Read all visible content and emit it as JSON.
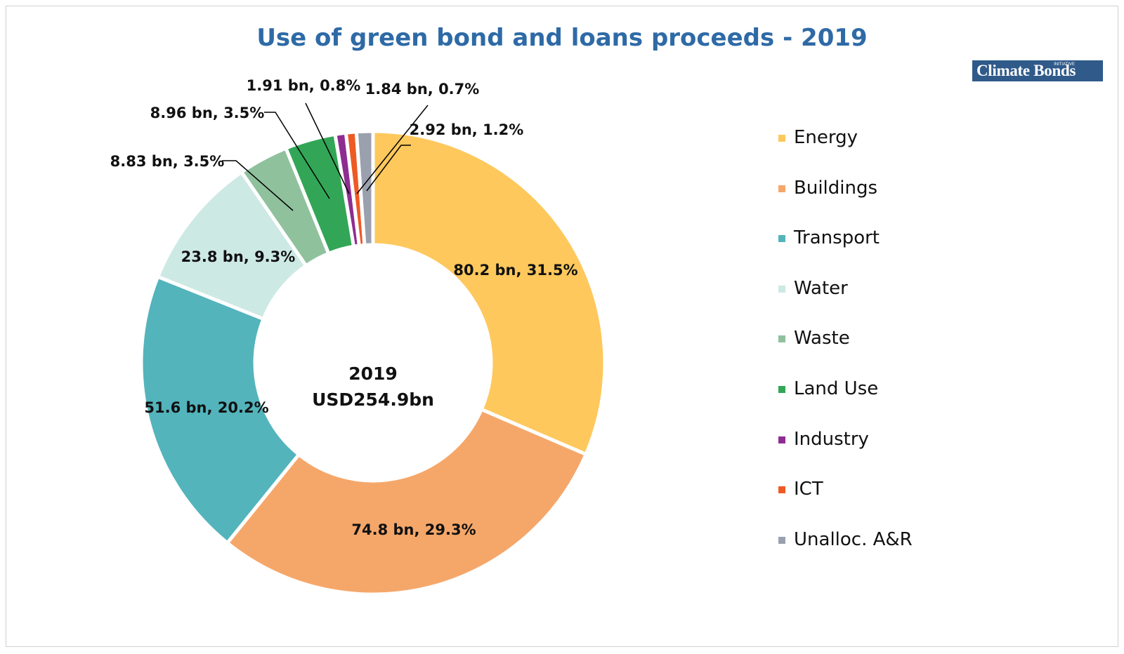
{
  "title": "Use of green bond and loans proceeds - 2019",
  "logo": {
    "text": "Climate Bonds",
    "tag": "INITIATIVE",
    "bg_color": "#2f5a8a"
  },
  "center": {
    "line1": "2019",
    "line2": "USD254.9bn"
  },
  "chart_data": {
    "type": "pie",
    "title": "Use of green bond and loans proceeds - 2019",
    "total_label": "USD254.9bn",
    "legend_position": "right",
    "categories": [
      "Energy",
      "Buildings",
      "Transport",
      "Water",
      "Waste",
      "Land Use",
      "Industry",
      "ICT",
      "Unalloc. A&R"
    ],
    "values": [
      80.2,
      74.8,
      51.6,
      23.8,
      8.83,
      8.96,
      1.91,
      1.84,
      2.92
    ],
    "percent": [
      31.5,
      29.3,
      20.2,
      9.3,
      3.5,
      3.5,
      0.8,
      0.7,
      1.2
    ],
    "data_labels": [
      "80.2 bn, 31.5%",
      "74.8 bn, 29.3%",
      "51.6 bn, 20.2%",
      "23.8 bn, 9.3%",
      "8.83 bn, 3.5%",
      "8.96 bn, 3.5%",
      "1.91 bn, 0.8%",
      "1.84 bn, 0.7%",
      "2.92 bn, 1.2%"
    ],
    "colors": [
      "#fec85c",
      "#f5a76a",
      "#53b4bc",
      "#cde9e4",
      "#8fc19d",
      "#32a656",
      "#8e2d91",
      "#ee5a24",
      "#9aa0ad"
    ]
  }
}
